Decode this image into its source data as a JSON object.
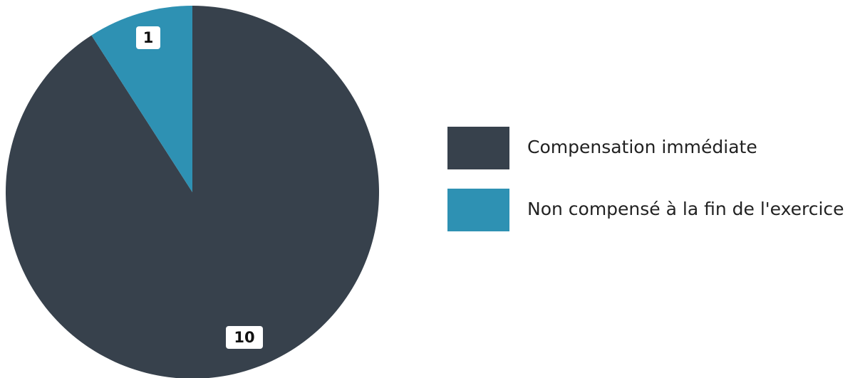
{
  "chart_data": {
    "type": "pie",
    "categories": [
      "Compensation immédiate",
      "Non compensé à la fin de l'exercice"
    ],
    "values": [
      10,
      1
    ],
    "colors": [
      "#37414c",
      "#2e91b3"
    ],
    "data_labels": [
      "10",
      "1"
    ],
    "legend": {
      "position": "right",
      "entries": [
        "Compensation immédiate",
        "Non compensé à la fin de l'exercice"
      ]
    },
    "start_angle_deg": 0,
    "direction": "clockwise"
  }
}
